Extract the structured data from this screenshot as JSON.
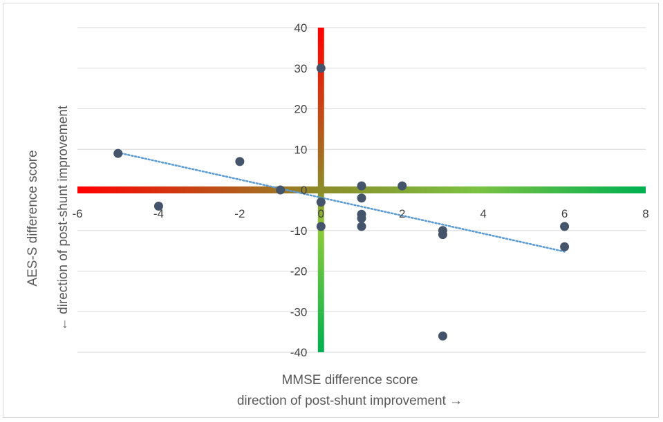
{
  "chart_data": {
    "type": "scatter",
    "title": "",
    "xlabel_lines": [
      "MMSE difference score",
      "direction of post-shunt improvement →"
    ],
    "ylabel_lines": [
      "AES-S difference score",
      "← direction of post-shunt improvement"
    ],
    "xlim": [
      -6,
      8
    ],
    "ylim": [
      -40,
      40
    ],
    "x_ticks": [
      -6,
      -4,
      -2,
      0,
      2,
      4,
      6,
      8
    ],
    "y_ticks": [
      40,
      30,
      20,
      10,
      0,
      -10,
      -20,
      -30,
      -40
    ],
    "grid": "horizontal",
    "points": [
      {
        "x": -5,
        "y": 9
      },
      {
        "x": -4,
        "y": -4
      },
      {
        "x": -2,
        "y": 7
      },
      {
        "x": -1,
        "y": 0
      },
      {
        "x": 0,
        "y": 30
      },
      {
        "x": 0,
        "y": -3
      },
      {
        "x": 0,
        "y": -9
      },
      {
        "x": 1,
        "y": 1
      },
      {
        "x": 1,
        "y": -2
      },
      {
        "x": 1,
        "y": -6
      },
      {
        "x": 1,
        "y": -7
      },
      {
        "x": 1,
        "y": -9
      },
      {
        "x": 2,
        "y": 1
      },
      {
        "x": 3,
        "y": -10
      },
      {
        "x": 3,
        "y": -11
      },
      {
        "x": 3,
        "y": -36
      },
      {
        "x": 6,
        "y": -9
      },
      {
        "x": 6,
        "y": -14
      }
    ],
    "trendline": {
      "x1": -5,
      "y1": 9.2,
      "x2": 6,
      "y2": -15.2
    },
    "colors": {
      "point": "#44546a",
      "trendline": "#5b9bd5",
      "grid": "#d9d9d9",
      "improve": "#00b050",
      "mid": "#8c8c2a",
      "worse": "#ff0000"
    }
  }
}
